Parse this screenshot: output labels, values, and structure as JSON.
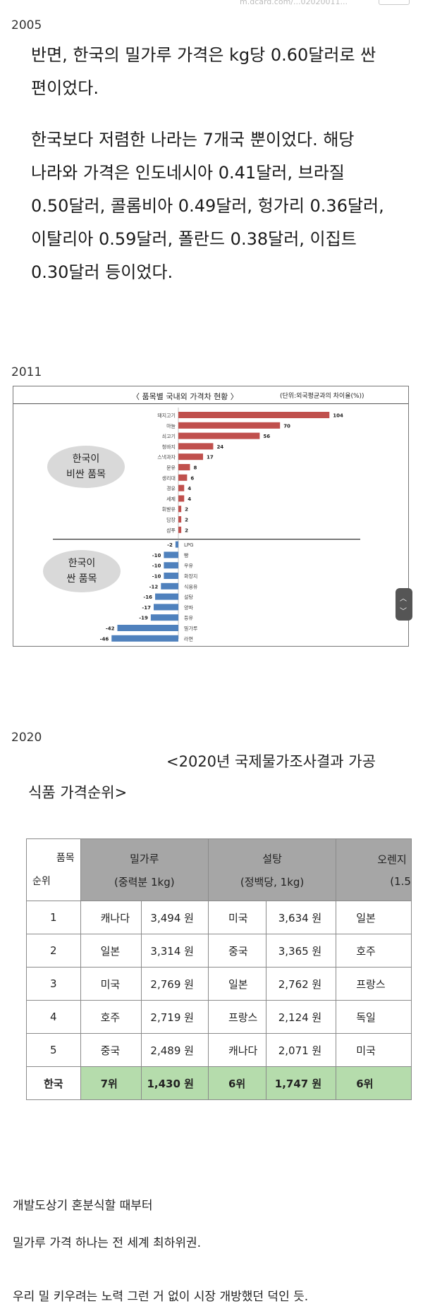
{
  "top": {
    "url": "m.dcard.com/...02020011..."
  },
  "sections": {
    "s2005": {
      "year": "2005",
      "p1_lines": [
        "반면, 한국의 밀가루 가격은 kg당 0.60달러로 싼",
        "편이었다."
      ],
      "p2_lines": [
        "한국보다 저렴한 나라는 7개국 뿐이었다. 해당",
        "나라와 가격은 인도네시아 0.41달러, 브라질",
        "0.50달러, 콜롬비아 0.49달러, 헝가리 0.36달러,",
        "이탈리아 0.59달러, 폴란드 0.38달러, 이집트",
        "0.30달러 등이었다."
      ]
    },
    "s2011": {
      "year": "2011",
      "chart_title": "〈 품목별 국내외 가격차 현황 〉",
      "chart_unit": "(단위:외국평균과의 차이율(%))",
      "bubble_expensive": [
        "한국이",
        "비싼 품목"
      ],
      "bubble_cheap": [
        "한국이",
        "싼 품목"
      ]
    },
    "s2020": {
      "year": "2020",
      "title_line1": "<2020년 국제물가조사결과 가공",
      "title_line2": "식품 가격순위>",
      "table": {
        "corner_top": "품목",
        "corner_bottom": "순위",
        "columns": [
          {
            "name": "밀가루",
            "sub": "(중력분 1kg)"
          },
          {
            "name": "설탕",
            "sub": "(정백당, 1kg)"
          },
          {
            "name": "오렌지",
            "sub": "(1.5"
          }
        ],
        "rows": [
          {
            "rank": "1",
            "c1": "캐나다",
            "v1": "3,494 원",
            "c2": "미국",
            "v2": "3,634 원",
            "c3": "일본"
          },
          {
            "rank": "2",
            "c1": "일본",
            "v1": "3,314 원",
            "c2": "중국",
            "v2": "3,365 원",
            "c3": "호주"
          },
          {
            "rank": "3",
            "c1": "미국",
            "v1": "2,769 원",
            "c2": "일본",
            "v2": "2,762 원",
            "c3": "프랑스"
          },
          {
            "rank": "4",
            "c1": "호주",
            "v1": "2,719 원",
            "c2": "프랑스",
            "v2": "2,124 원",
            "c3": "독일"
          },
          {
            "rank": "5",
            "c1": "중국",
            "v1": "2,489 원",
            "c2": "캐나다",
            "v2": "2,071 원",
            "c3": "미국"
          }
        ],
        "korea": {
          "rank": "한국",
          "c1": "7위",
          "v1": "1,430 원",
          "c2": "6위",
          "v2": "1,747 원",
          "c3": "6위"
        }
      }
    },
    "footer": {
      "line1": "개발도상기 혼분식할 때부터",
      "line2": "밀가루 가격 하나는 전 세계 최하위권.",
      "line3": "우리 밀 키우려는 노력 그런 거 없이 시장 개방했던 덕인 듯."
    }
  },
  "chart_data": {
    "type": "bar",
    "orientation": "horizontal",
    "title": "〈 품목별 국내외 가격차 현황 〉",
    "unit": "(단위:외국평균과의 차이율(%))",
    "categories": [
      "돼지고기",
      "마늘",
      "쇠고기",
      "청바지",
      "스낵과자",
      "분유",
      "생리대",
      "경유",
      "세제",
      "휘발유",
      "담장",
      "샴푸",
      "LPG",
      "빵",
      "우유",
      "화장지",
      "식용유",
      "설탕",
      "양파",
      "등유",
      "밀가루",
      "라면"
    ],
    "values": [
      104,
      70,
      56,
      24,
      17,
      8,
      6,
      4,
      4,
      2,
      2,
      2,
      -2,
      -10,
      -10,
      -10,
      -12,
      -16,
      -17,
      -19,
      -42,
      -46
    ],
    "colors": {
      "positive": "#c0504d",
      "negative": "#4f81bd"
    },
    "xlim": [
      -50,
      110
    ]
  }
}
